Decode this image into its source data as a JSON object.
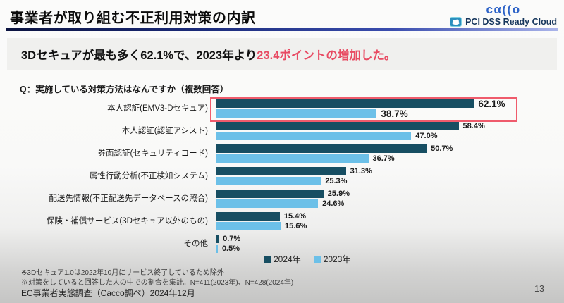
{
  "header": {
    "title": "事業者が取り組む不正利用対策の内訳",
    "logo": {
      "brand": "cα((o",
      "pci_regular": "PCI DSS ",
      "pci_bold": "Ready Cloud"
    }
  },
  "headline": {
    "black": "3Dセキュアが最も多く62.1%で、2023年より",
    "red": "23.4ポイントの増加した。"
  },
  "question": "Q：実施している対策方法はなんですか（複数回答）",
  "chart_data": {
    "type": "bar",
    "orientation": "horizontal",
    "title": "",
    "xlabel": "",
    "ylabel": "",
    "xlim": [
      0,
      82
    ],
    "grid": false,
    "legend_position": "bottom",
    "value_suffix": "%",
    "highlight_row": 0,
    "highlight_note": "first row outlined in red",
    "categories": [
      "本人認証(EMV3-Dセキュア)",
      "本人認証(認証アシスト)",
      "券面認証(セキュリティコード)",
      "属性行動分析(不正検知システム)",
      "配送先情報(不正配送先データベースの照合)",
      "保険・補償サービス(3Dセキュア以外のもの)",
      "その他"
    ],
    "series": [
      {
        "name": "2024年",
        "color": "#174e62",
        "values": [
          62.1,
          58.4,
          50.7,
          31.3,
          25.9,
          15.4,
          0.7
        ],
        "labels": [
          "62.1%",
          "58.4%",
          "50.7%",
          "31.3%",
          "25.9%",
          "15.4%",
          "0.7%"
        ]
      },
      {
        "name": "2023年",
        "color": "#6cc0e8",
        "values": [
          38.7,
          47.0,
          36.7,
          25.3,
          24.6,
          15.6,
          0.5
        ],
        "labels": [
          "38.7%",
          "47.0%",
          "36.7%",
          "25.3%",
          "24.6%",
          "15.6%",
          "0.5%"
        ]
      }
    ]
  },
  "footnotes": [
    "※3Dセキュア1.0は2022年10月にサービス終了しているため除外",
    "※対策をしていると回答した人の中での割合を集計。N=411(2023年)、N=428(2024年)"
  ],
  "source": "EC事業者実態調査（Cacco調べ）2024年12月",
  "page_number": "13"
}
